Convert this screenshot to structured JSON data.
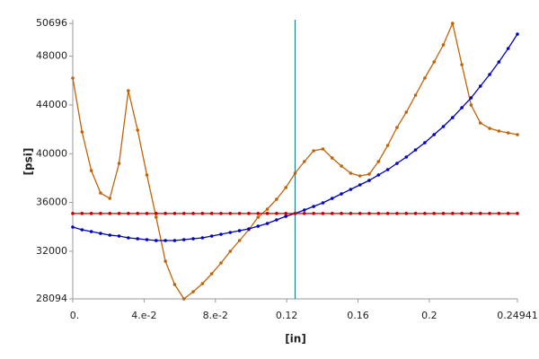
{
  "chart_data": {
    "type": "line",
    "xlabel": "[in]",
    "ylabel": "[psi]",
    "x": [
      0,
      0.0052,
      0.01039,
      0.01559,
      0.02078,
      0.02598,
      0.03118,
      0.03637,
      0.04157,
      0.04676,
      0.05196,
      0.05716,
      0.06235,
      0.06755,
      0.07274,
      0.07794,
      0.08314,
      0.08833,
      0.09353,
      0.09872,
      0.10392,
      0.10912,
      0.11431,
      0.11951,
      0.12471,
      0.1299,
      0.1351,
      0.14029,
      0.14549,
      0.15069,
      0.15588,
      0.16108,
      0.16627,
      0.17147,
      0.17667,
      0.18186,
      0.18706,
      0.19225,
      0.19745,
      0.20265,
      0.20784,
      0.21304,
      0.21823,
      0.22343,
      0.22863,
      0.23382,
      0.23902,
      0.24421,
      0.24941
    ],
    "series": [
      {
        "color": "#c0640a",
        "values": [
          46205,
          41787,
          38622,
          36781,
          36339,
          39211,
          45174,
          41935,
          38254,
          34793,
          31186,
          29272,
          28094,
          28683,
          29346,
          30155,
          31039,
          31996,
          32879,
          33763,
          34793,
          35456,
          36266,
          37223,
          38401,
          39358,
          40241,
          40389,
          39652,
          38990,
          38401,
          38180,
          38327,
          39358,
          40683,
          42155,
          43407,
          44806,
          46205,
          47530,
          48928,
          50696,
          47309,
          43996,
          42524,
          42082,
          41861,
          41714,
          41566
        ]
      },
      {
        "color": "#0000c0",
        "values": [
          33984,
          33763,
          33616,
          33468,
          33321,
          33247,
          33100,
          33027,
          32953,
          32879,
          32879,
          32879,
          32953,
          33027,
          33100,
          33247,
          33395,
          33542,
          33689,
          33836,
          34057,
          34278,
          34573,
          34867,
          35100,
          35382,
          35677,
          35971,
          36339,
          36708,
          37076,
          37444,
          37812,
          38254,
          38695,
          39211,
          39726,
          40315,
          40904,
          41566,
          42229,
          42965,
          43775,
          44585,
          45542,
          46499,
          47530,
          48634,
          49812
        ]
      },
      {
        "color": "#c00000",
        "values": [
          35100,
          35100,
          35100,
          35100,
          35100,
          35100,
          35100,
          35100,
          35100,
          35100,
          35100,
          35100,
          35100,
          35100,
          35100,
          35100,
          35100,
          35100,
          35100,
          35100,
          35100,
          35100,
          35100,
          35100,
          35100,
          35100,
          35100,
          35100,
          35100,
          35100,
          35100,
          35100,
          35100,
          35100,
          35100,
          35100,
          35100,
          35100,
          35100,
          35100,
          35100,
          35100,
          35100,
          35100,
          35100,
          35100,
          35100,
          35100,
          35100
        ]
      }
    ],
    "vline": 0.12471,
    "vline_color": "#1f7f8f",
    "xlim": [
      0,
      0.24941
    ],
    "xticks": [
      {
        "value": 0,
        "label": "0."
      },
      {
        "value": 0.04,
        "label": "4.e-2"
      },
      {
        "value": 0.08,
        "label": "8.e-2"
      },
      0.12,
      0.16,
      0.2,
      0.24941
    ],
    "ylim": [
      28094,
      50696
    ],
    "yticks": [
      28094,
      32000,
      36000,
      40000,
      44000,
      48000,
      50696
    ],
    "markers": true
  }
}
